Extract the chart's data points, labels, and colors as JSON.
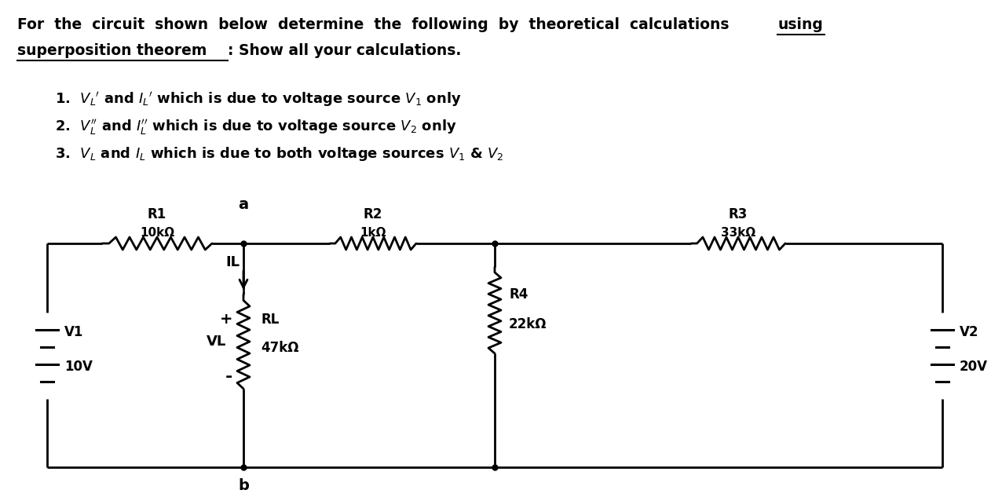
{
  "bg_color": "#ffffff",
  "circuit": {
    "V1_label": "V1",
    "V1_value": "10V",
    "V2_label": "V2",
    "V2_value": "20V",
    "R1_label": "R1",
    "R1_value": "10kΩ",
    "R2_label": "R2",
    "R2_value": "1kΩ",
    "R3_label": "R3",
    "R3_value": "33kΩ",
    "R4_label": "R4",
    "R4_value": "22kΩ",
    "RL_label": "RL",
    "RL_value": "47kΩ",
    "VL_label": "VL",
    "IL_label": "IL",
    "node_a": "a",
    "node_b": "b"
  }
}
